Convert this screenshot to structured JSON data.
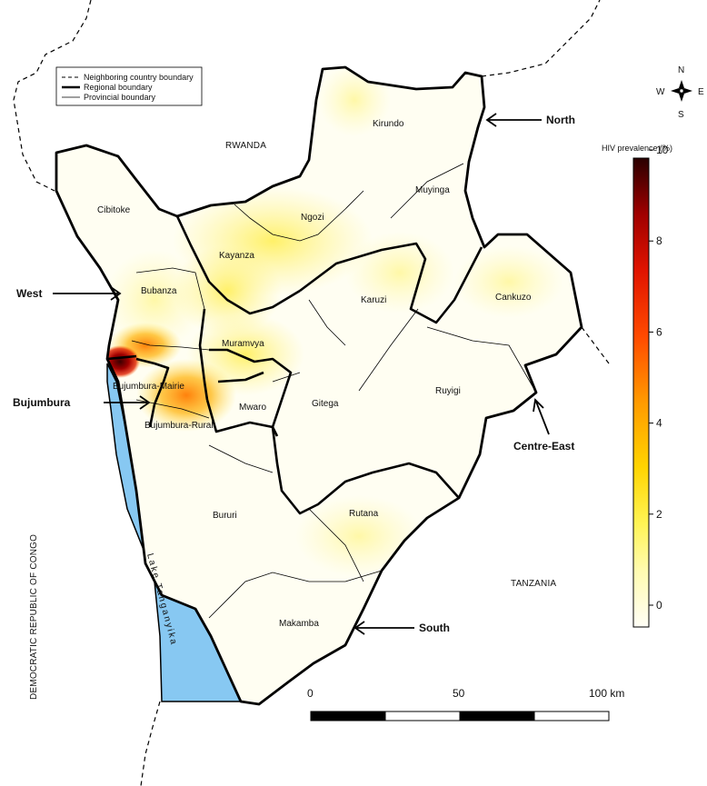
{
  "legend": {
    "items": [
      {
        "label": "Neighboring country boundary",
        "style": "dashed"
      },
      {
        "label": "Regional boundary",
        "style": "thick"
      },
      {
        "label": "Provincial boundary",
        "style": "thin"
      }
    ]
  },
  "countries": {
    "rwanda": "RWANDA",
    "tanzania": "TANZANIA",
    "drc": "DEMOCRATIC REPUBLIC OF CONGO"
  },
  "lake": "Lake Tanganyika",
  "provinces": {
    "kirundo": "Kirundo",
    "muyinga": "Muyinga",
    "ngozi": "Ngozi",
    "cibitoke": "Cibitoke",
    "kayanza": "Kayanza",
    "bubanza": "Bubanza",
    "karuzi": "Karuzi",
    "cankuzo": "Cankuzo",
    "muramvya": "Muramvya",
    "bujumbura_mairie": "Bujumbura-Mairie",
    "bujumbura_rural": "Bujumbura-Rural",
    "mwaro": "Mwaro",
    "gitega": "Gitega",
    "ruyigi": "Ruyigi",
    "bururi": "Bururi",
    "rutana": "Rutana",
    "makamba": "Makamba"
  },
  "regions": {
    "north": "North",
    "west": "West",
    "bujumbura": "Bujumbura",
    "centre_east": "Centre-East",
    "south": "South"
  },
  "colorbar": {
    "title": "HIV prevalence (%)",
    "ticks": [
      "10",
      "8",
      "6",
      "4",
      "2",
      "0"
    ],
    "min": 0,
    "max": 10.3,
    "colors": [
      "#fffef6",
      "#fff98a",
      "#ffe81c",
      "#ffb000",
      "#ff5a00",
      "#e01800",
      "#a00000",
      "#3a0000"
    ]
  },
  "compass": {
    "n": "N",
    "s": "S",
    "e": "E",
    "w": "W"
  },
  "scalebar": {
    "labels": [
      "0",
      "50",
      "100 km"
    ]
  },
  "colors": {
    "lake": "#87c8f2",
    "low": "#fffef2",
    "high": "#3a0000"
  }
}
